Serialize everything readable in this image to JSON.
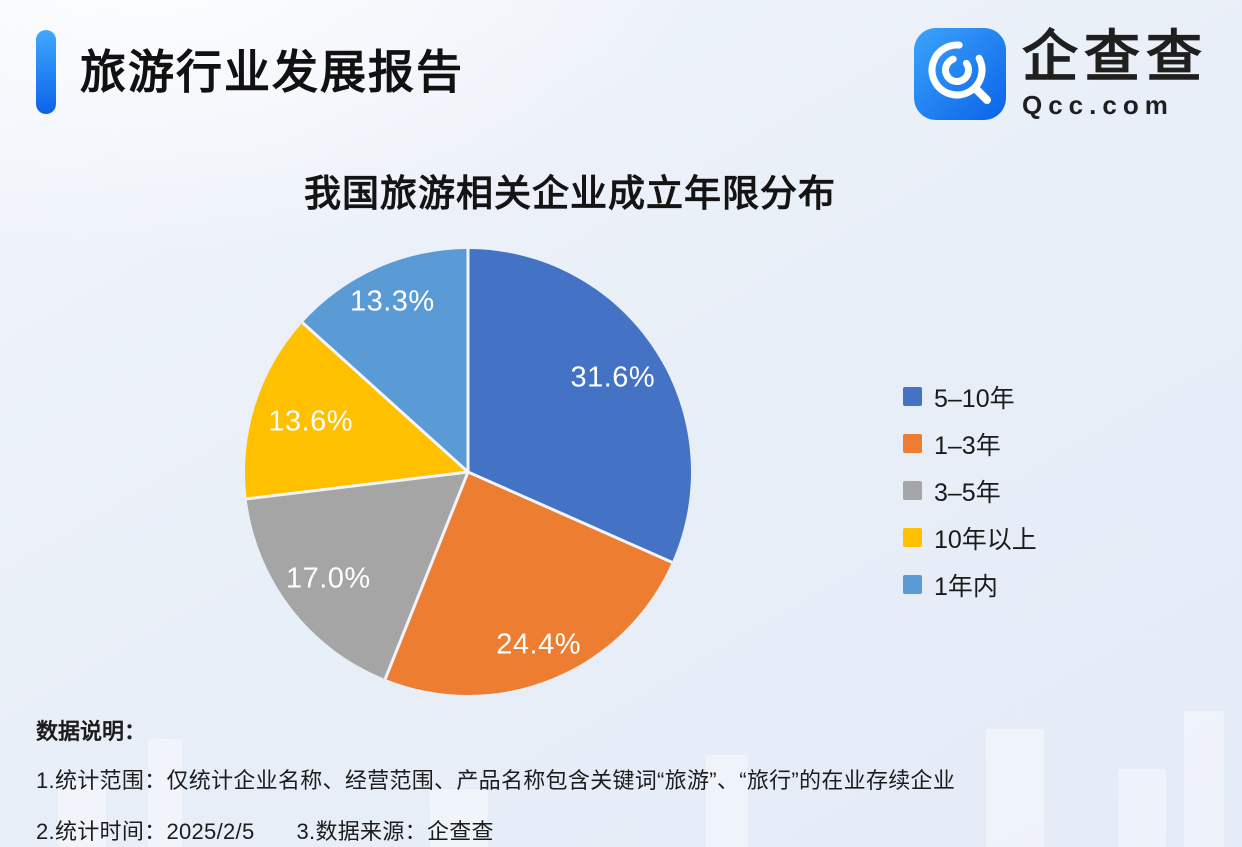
{
  "header": {
    "title": "旅游行业发展报告",
    "accent_color": "#1A7DF0"
  },
  "logo": {
    "brand_cn": "企查查",
    "brand_domain": "Qcc.com",
    "icon_color": "#1E88F7"
  },
  "chart_data": {
    "type": "pie",
    "title": "我国旅游相关企业成立年限分布",
    "categories": [
      "5–10年",
      "1–3年",
      "3–5年",
      "10年以上",
      "1年内"
    ],
    "values": [
      31.6,
      24.4,
      17.0,
      13.6,
      13.3
    ],
    "labels": [
      "31.6%",
      "24.4%",
      "17.0%",
      "13.6%",
      "13.3%"
    ],
    "colors": [
      "#4472C4",
      "#ED7D31",
      "#A5A5A5",
      "#FFC000",
      "#5B9BD5"
    ],
    "start_angle_deg": 0,
    "direction": "clockwise",
    "legend_position": "right",
    "label_color": "#FFFFFF",
    "grid": false
  },
  "footnotes": {
    "heading": "数据说明：",
    "line1": "1.统计范围：仅统计企业名称、经营范围、产品名称包含关键词“旅游”、“旅行”的在业存续企业",
    "line2_time": "2.统计时间：2025/2/5",
    "line2_source": "3.数据来源：企查查"
  }
}
